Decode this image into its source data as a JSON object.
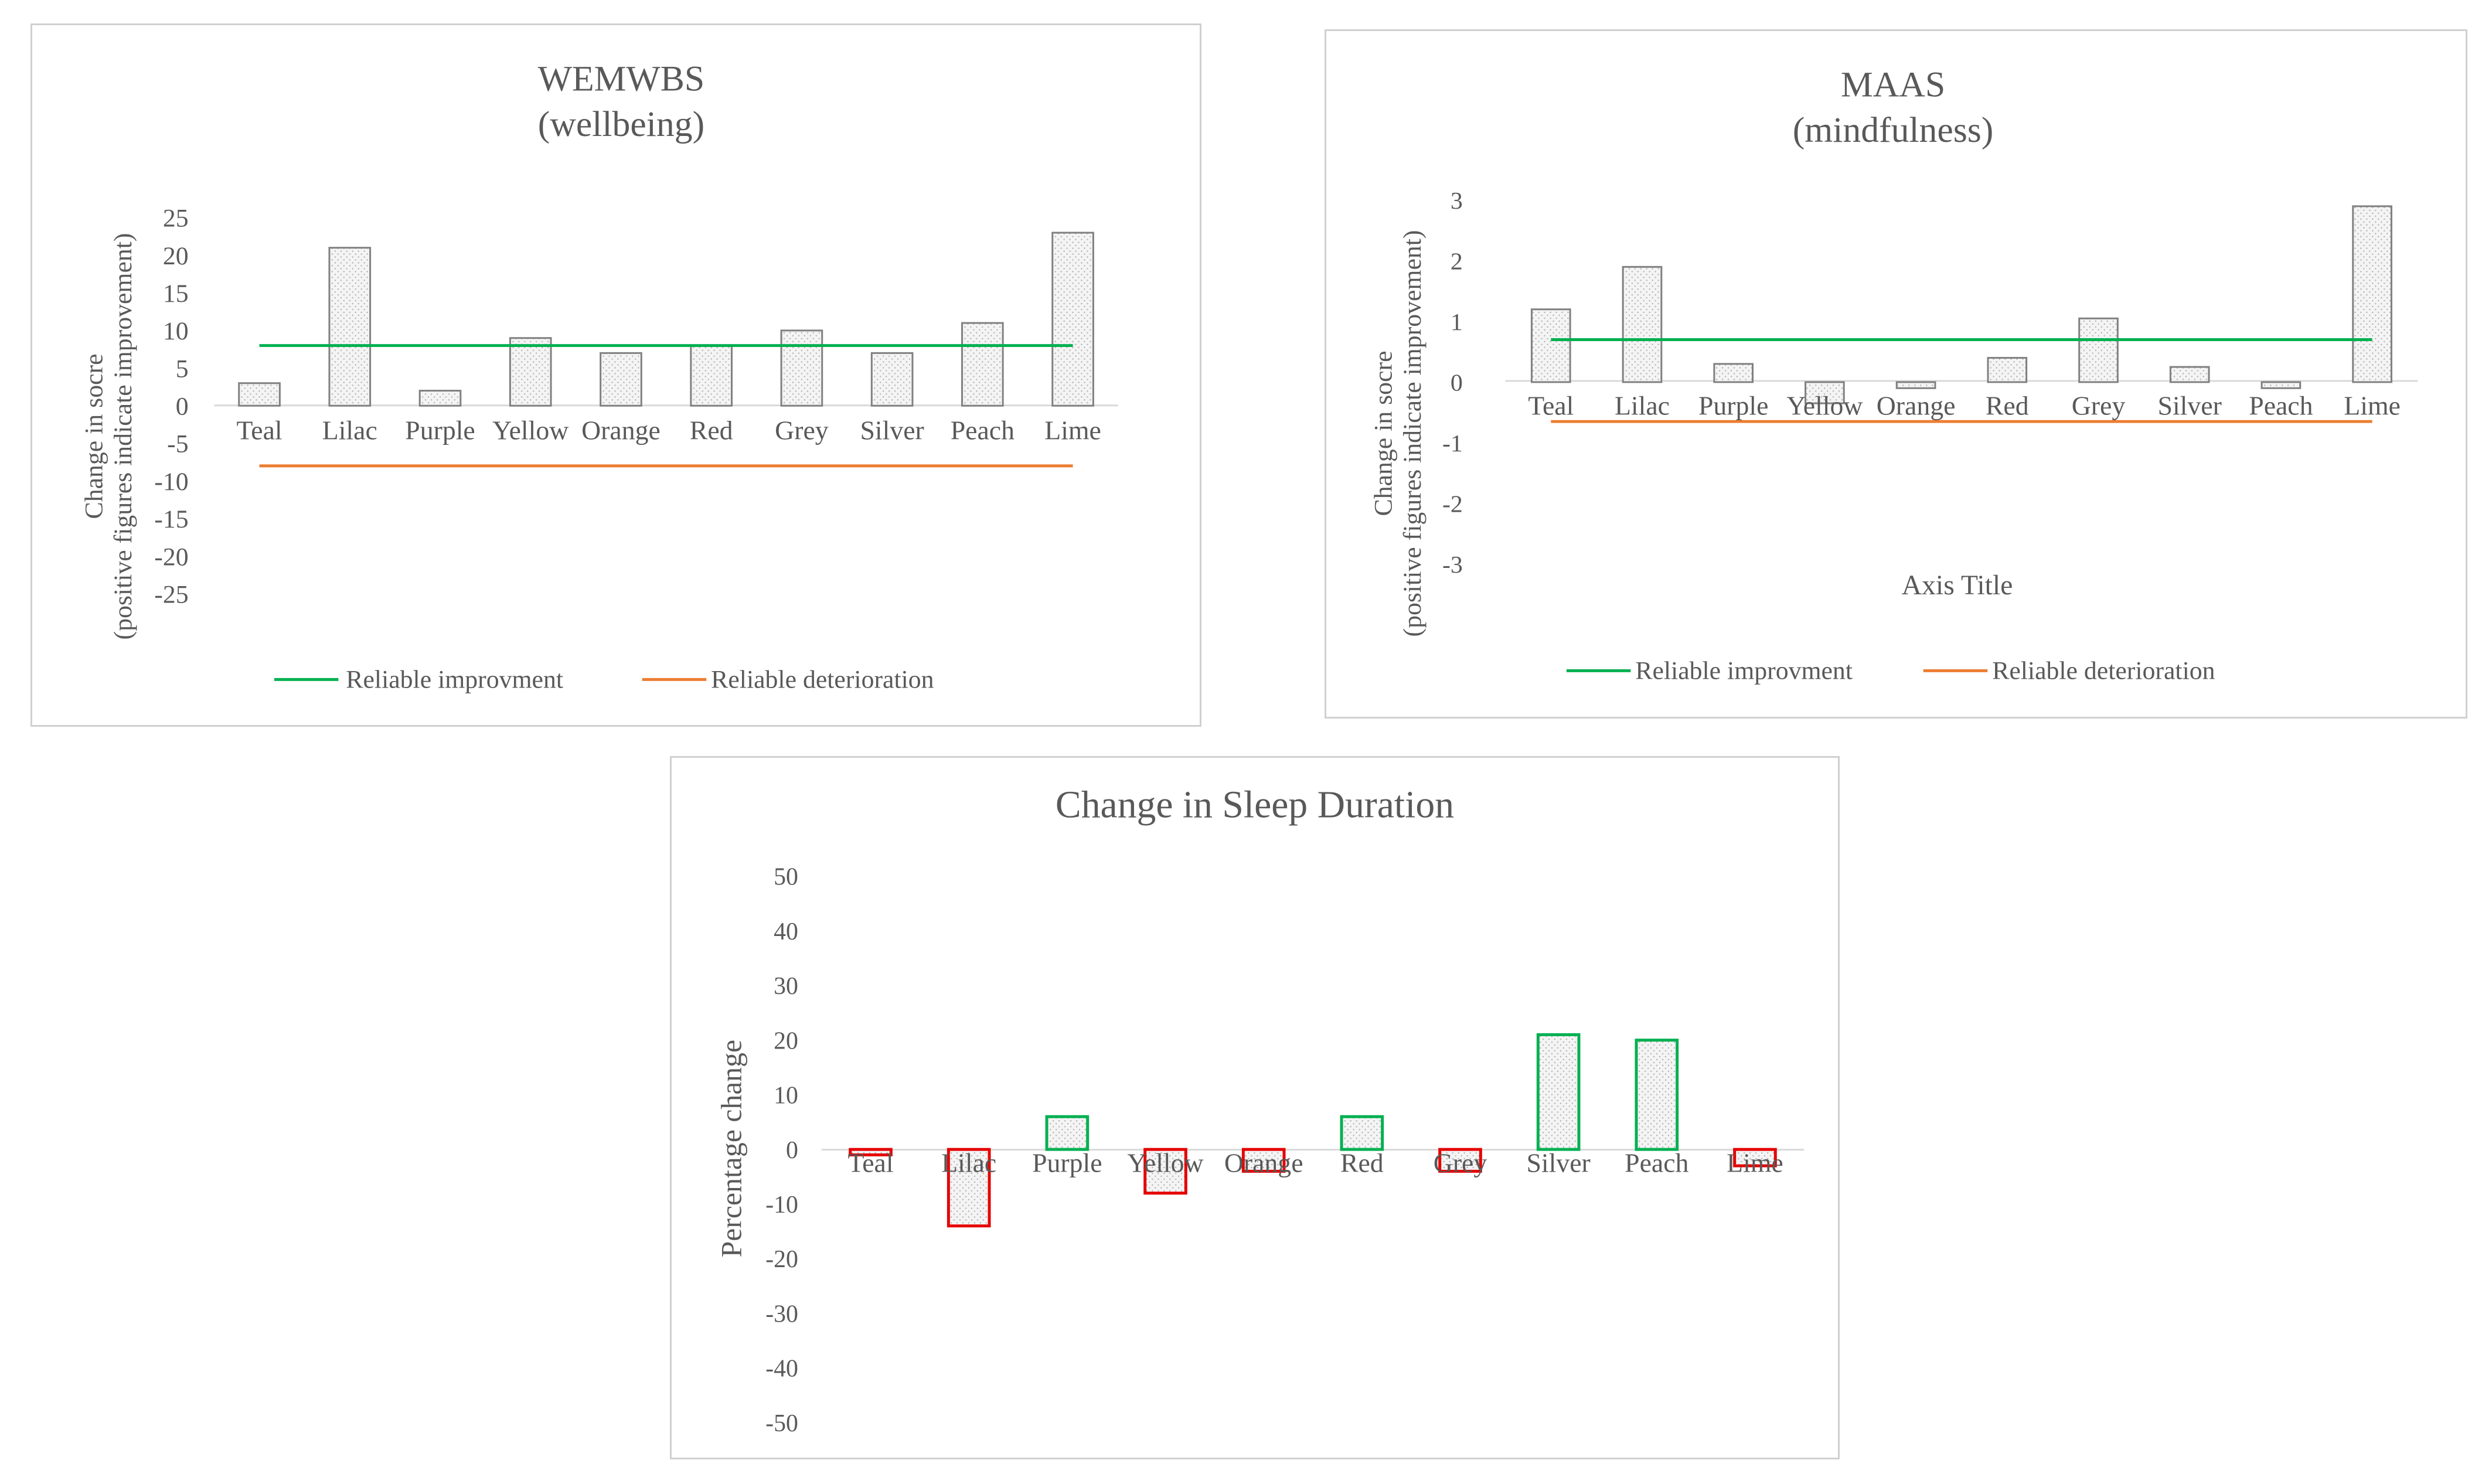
{
  "colors": {
    "bar_stroke": "#808080",
    "bar_fill": "#f4f4f4",
    "bar_dot": "#b0b0b0",
    "improvement_line": "#00b050",
    "deterioration_line": "#ed7d31",
    "sleep_positive": "#00b050",
    "sleep_negative": "#e60000",
    "axis_text": "#595959",
    "zero_line": "#d9d9d9",
    "panel_border": "#d0d0d0"
  },
  "chart_data": [
    {
      "type": "bar",
      "title_line1": "WEMWBS",
      "title_line2": "(wellbeing)",
      "ylabel_line1": "Change in socre",
      "ylabel_line2": "(positive figures indicate improvement)",
      "categories": [
        "Teal",
        "Lilac",
        "Purple",
        "Yellow",
        "Orange",
        "Red",
        "Grey",
        "Silver",
        "Peach",
        "Lime"
      ],
      "values": [
        3,
        21,
        2,
        9,
        7,
        8,
        10,
        7,
        11,
        23
      ],
      "ylim": [
        -25,
        25
      ],
      "yticks": [
        "25",
        "20",
        "15",
        "10",
        "5",
        "0",
        "-5",
        "-10",
        "-15",
        "-20",
        "-25"
      ],
      "reference_lines": [
        {
          "name": "Reliable improvment",
          "value": 8,
          "color": "#00b050"
        },
        {
          "name": "Reliable deterioration",
          "value": -8,
          "color": "#ed7d31"
        }
      ],
      "legend": [
        "Reliable improvment",
        "Reliable deterioration"
      ]
    },
    {
      "type": "bar",
      "title_line1": "MAAS",
      "title_line2": "(mindfulness)",
      "ylabel_line1": "Change in socre",
      "ylabel_line2": "(positive figures indicate improvement)",
      "xlabel": "Axis Title",
      "categories": [
        "Teal",
        "Lilac",
        "Purple",
        "Yellow",
        "Orange",
        "Red",
        "Grey",
        "Silver",
        "Peach",
        "Lime"
      ],
      "values": [
        1.2,
        1.9,
        0.3,
        -0.35,
        -0.1,
        0.4,
        1.05,
        0.25,
        -0.1,
        2.9
      ],
      "ylim": [
        -3,
        3
      ],
      "yticks": [
        "3",
        "2",
        "1",
        "0",
        "-1",
        "-2",
        "-3"
      ],
      "reference_lines": [
        {
          "name": "Reliable improvment",
          "value": 0.7,
          "color": "#00b050"
        },
        {
          "name": "Reliable deterioration",
          "value": -0.65,
          "color": "#ed7d31"
        }
      ],
      "legend": [
        "Reliable improvment",
        "Reliable deterioration"
      ]
    },
    {
      "type": "bar",
      "title": "Change  in Sleep Duration",
      "ylabel": "Percentage change",
      "categories": [
        "Teal",
        "Lilac",
        "Purple",
        "Yellow",
        "Orange",
        "Red",
        "Grey",
        "Silver",
        "Peach",
        "Lime"
      ],
      "values": [
        -1,
        -14,
        6,
        -8,
        -4,
        6,
        -4,
        21,
        20,
        -3
      ],
      "ylim": [
        -50,
        50
      ],
      "yticks": [
        "50",
        "40",
        "30",
        "20",
        "10",
        "0",
        "-10",
        "-20",
        "-30",
        "-40",
        "-50"
      ],
      "legend": []
    }
  ]
}
